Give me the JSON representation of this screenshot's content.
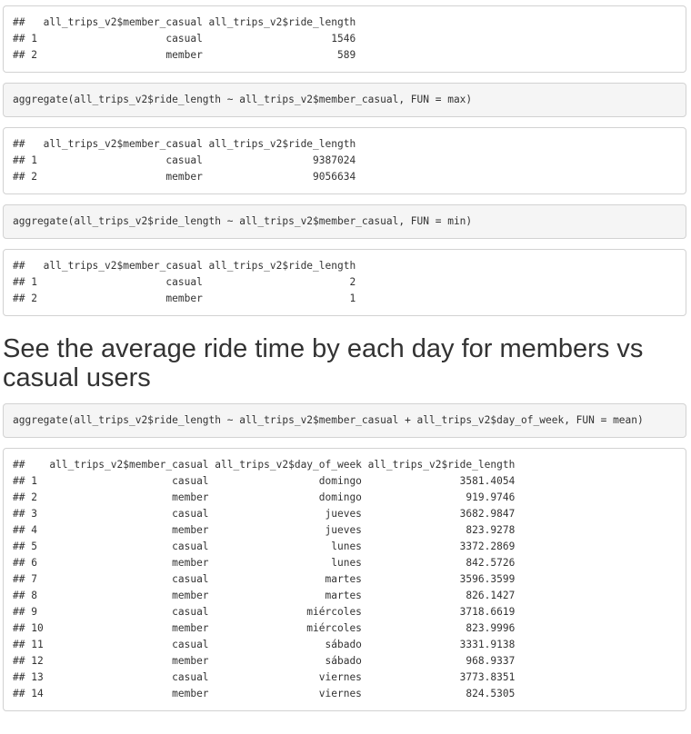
{
  "blocks": {
    "output_mean_tail": "##   all_trips_v2$member_casual all_trips_v2$ride_length\n## 1                     casual                     1546\n## 2                     member                      589",
    "code_max": "aggregate(all_trips_v2$ride_length ~ all_trips_v2$member_casual, FUN = max)",
    "output_max": "##   all_trips_v2$member_casual all_trips_v2$ride_length\n## 1                     casual                  9387024\n## 2                     member                  9056634",
    "code_min": "aggregate(all_trips_v2$ride_length ~ all_trips_v2$member_casual, FUN = min)",
    "output_min": "##   all_trips_v2$member_casual all_trips_v2$ride_length\n## 1                     casual                        2\n## 2                     member                        1",
    "heading": "See the average ride time by each day for members vs casual users",
    "code_day": "aggregate(all_trips_v2$ride_length ~ all_trips_v2$member_casual + all_trips_v2$day_of_week, FUN = mean)",
    "output_day": "##    all_trips_v2$member_casual all_trips_v2$day_of_week all_trips_v2$ride_length\n## 1                      casual                  domingo                3581.4054\n## 2                      member                  domingo                 919.9746\n## 3                      casual                   jueves                3682.9847\n## 4                      member                   jueves                 823.9278\n## 5                      casual                    lunes                3372.2869\n## 6                      member                    lunes                 842.5726\n## 7                      casual                   martes                3596.3599\n## 8                      member                   martes                 826.1427\n## 9                      casual                miércoles                3718.6619\n## 10                     member                miércoles                 823.9996\n## 11                     casual                   sábado                3331.9138\n## 12                     member                   sábado                 968.9337\n## 13                     casual                  viernes                3773.8351\n## 14                     member                  viernes                 824.5305"
  }
}
